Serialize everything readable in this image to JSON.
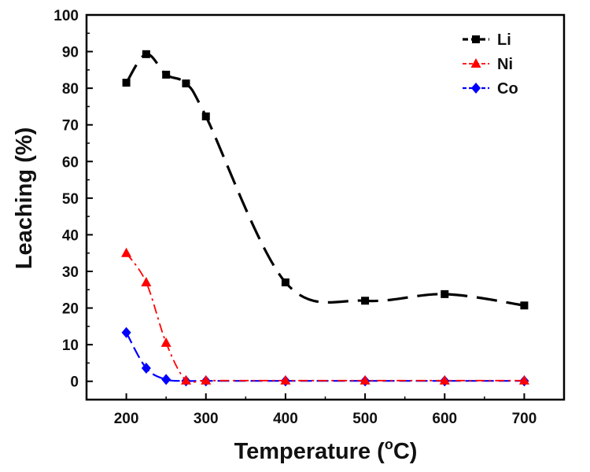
{
  "chart_data": {
    "type": "line",
    "title": "",
    "xlabel": "Temperature (",
    "xlabel_sup": "o",
    "xlabel_tail": "C)",
    "ylabel": "Leaching (%)",
    "xlim": [
      150,
      750
    ],
    "ylim": [
      -5,
      100
    ],
    "x_ticks": [
      200,
      300,
      400,
      500,
      600,
      700
    ],
    "y_ticks": [
      0,
      10,
      20,
      30,
      40,
      50,
      60,
      70,
      80,
      90,
      100
    ],
    "x_minor_ticks": [
      250,
      350,
      450,
      550,
      650
    ],
    "grid": false,
    "legend_position": "top-right",
    "series": [
      {
        "name": "Li",
        "color": "#000000",
        "marker": "square",
        "x": [
          200,
          225,
          250,
          275,
          300,
          400,
          500,
          600,
          700
        ],
        "y": [
          81.5,
          89.3,
          83.7,
          81.3,
          72.3,
          27.0,
          22.0,
          23.8,
          20.7
        ]
      },
      {
        "name": "Ni",
        "color": "#ff0000",
        "marker": "triangle",
        "x": [
          200,
          225,
          250,
          275,
          300,
          400,
          500,
          600,
          700
        ],
        "y": [
          35.0,
          27.0,
          10.5,
          0.2,
          0.2,
          0.2,
          0.2,
          0.2,
          0.2
        ]
      },
      {
        "name": "Co",
        "color": "#0000ff",
        "marker": "diamond",
        "x": [
          200,
          225,
          250,
          275,
          300,
          400,
          500,
          600,
          700
        ],
        "y": [
          13.3,
          3.6,
          0.5,
          0.1,
          0.1,
          0.1,
          0.1,
          0.1,
          0.1
        ]
      }
    ]
  }
}
